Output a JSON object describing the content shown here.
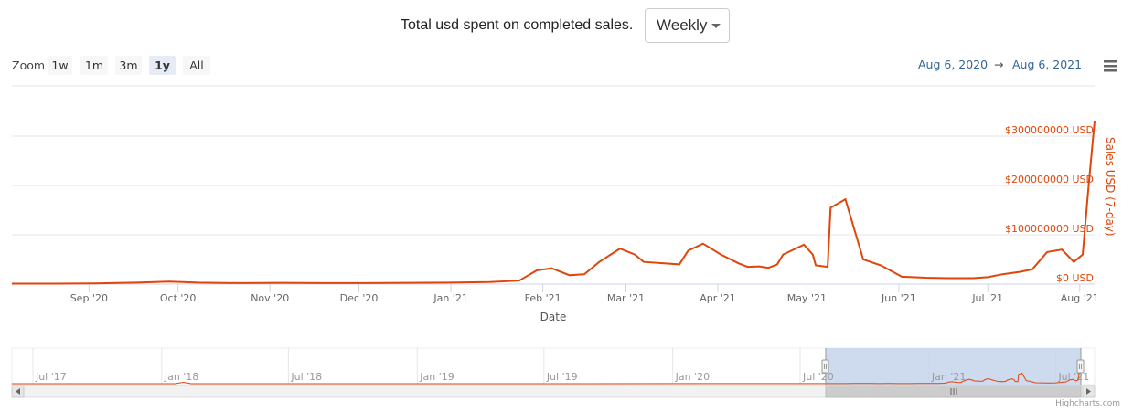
{
  "header": {
    "title": "Total usd spent on completed sales.",
    "interval_select": {
      "selected": "Weekly"
    }
  },
  "toolbar": {
    "zoom_label": "Zoom",
    "zoom_buttons": [
      "1w",
      "1m",
      "3m",
      "1y",
      "All"
    ],
    "selected_zoom": "1y",
    "range_from": "Aug 6, 2020",
    "range_arrow": "→",
    "range_to": "Aug 6, 2021",
    "menu_icon": "hamburger-menu-icon"
  },
  "credits": "Highcharts.com",
  "colors": {
    "series": "#e0460b",
    "axis_label": "#e0460b",
    "range_text": "#336699",
    "navigator_mask": "#c6d5ec",
    "selected_button": "#e6ebf5"
  },
  "chart_data": {
    "type": "line",
    "xlabel": "Date",
    "ylabel": "Sales USD (7-day)",
    "ylim": [
      0,
      350000000
    ],
    "yticks": [
      "$0 USD",
      "$100000000 USD",
      "$200000000 USD",
      "$300000000 USD"
    ],
    "xticks": [
      "Sep '20",
      "Oct '20",
      "Nov '20",
      "Dec '20",
      "Jan '21",
      "Feb '21",
      "Mar '21",
      "Apr '21",
      "May '21",
      "Jun '21",
      "Jul '21",
      "Aug '21"
    ],
    "x_dates": [
      "2020-08-06",
      "2020-08-20",
      "2020-09-03",
      "2020-09-17",
      "2020-09-28",
      "2020-10-08",
      "2020-10-22",
      "2020-11-05",
      "2020-11-19",
      "2020-12-03",
      "2020-12-17",
      "2020-12-31",
      "2021-01-14",
      "2021-01-24",
      "2021-01-30",
      "2021-02-04",
      "2021-02-10",
      "2021-02-15",
      "2021-02-20",
      "2021-02-27",
      "2021-03-04",
      "2021-03-07",
      "2021-03-14",
      "2021-03-19",
      "2021-03-22",
      "2021-03-27",
      "2021-04-02",
      "2021-04-08",
      "2021-04-11",
      "2021-04-15",
      "2021-04-18",
      "2021-04-21",
      "2021-04-23",
      "2021-04-30",
      "2021-05-03",
      "2021-05-04",
      "2021-05-08",
      "2021-05-09",
      "2021-05-14",
      "2021-05-20",
      "2021-05-26",
      "2021-06-02",
      "2021-06-10",
      "2021-06-18",
      "2021-06-26",
      "2021-07-01",
      "2021-07-06",
      "2021-07-12",
      "2021-07-16",
      "2021-07-21",
      "2021-07-26",
      "2021-07-30",
      "2021-08-02",
      "2021-08-04",
      "2021-08-06"
    ],
    "values": [
      1000000,
      1000000,
      1500000,
      3000000,
      5000000,
      3000000,
      2000000,
      2500000,
      2000000,
      2000000,
      2500000,
      3000000,
      4000000,
      7000000,
      28000000,
      32000000,
      18000000,
      20000000,
      45000000,
      72000000,
      60000000,
      45000000,
      42000000,
      40000000,
      68000000,
      82000000,
      60000000,
      42000000,
      35000000,
      36000000,
      33000000,
      40000000,
      60000000,
      80000000,
      60000000,
      38000000,
      35000000,
      155000000,
      172000000,
      50000000,
      38000000,
      15000000,
      13000000,
      12000000,
      12000000,
      14000000,
      20000000,
      25000000,
      30000000,
      65000000,
      70000000,
      45000000,
      60000000,
      200000000,
      330000000
    ],
    "navigator": {
      "xticks": [
        "Jul '17",
        "Jan '18",
        "Jul '18",
        "Jan '19",
        "Jul '19",
        "Jan '20",
        "Jul '20",
        "Jan '21",
        "Jul '21"
      ],
      "selection": [
        "2020-08-06",
        "2021-08-06"
      ]
    },
    "grid": true,
    "legend": "none"
  }
}
